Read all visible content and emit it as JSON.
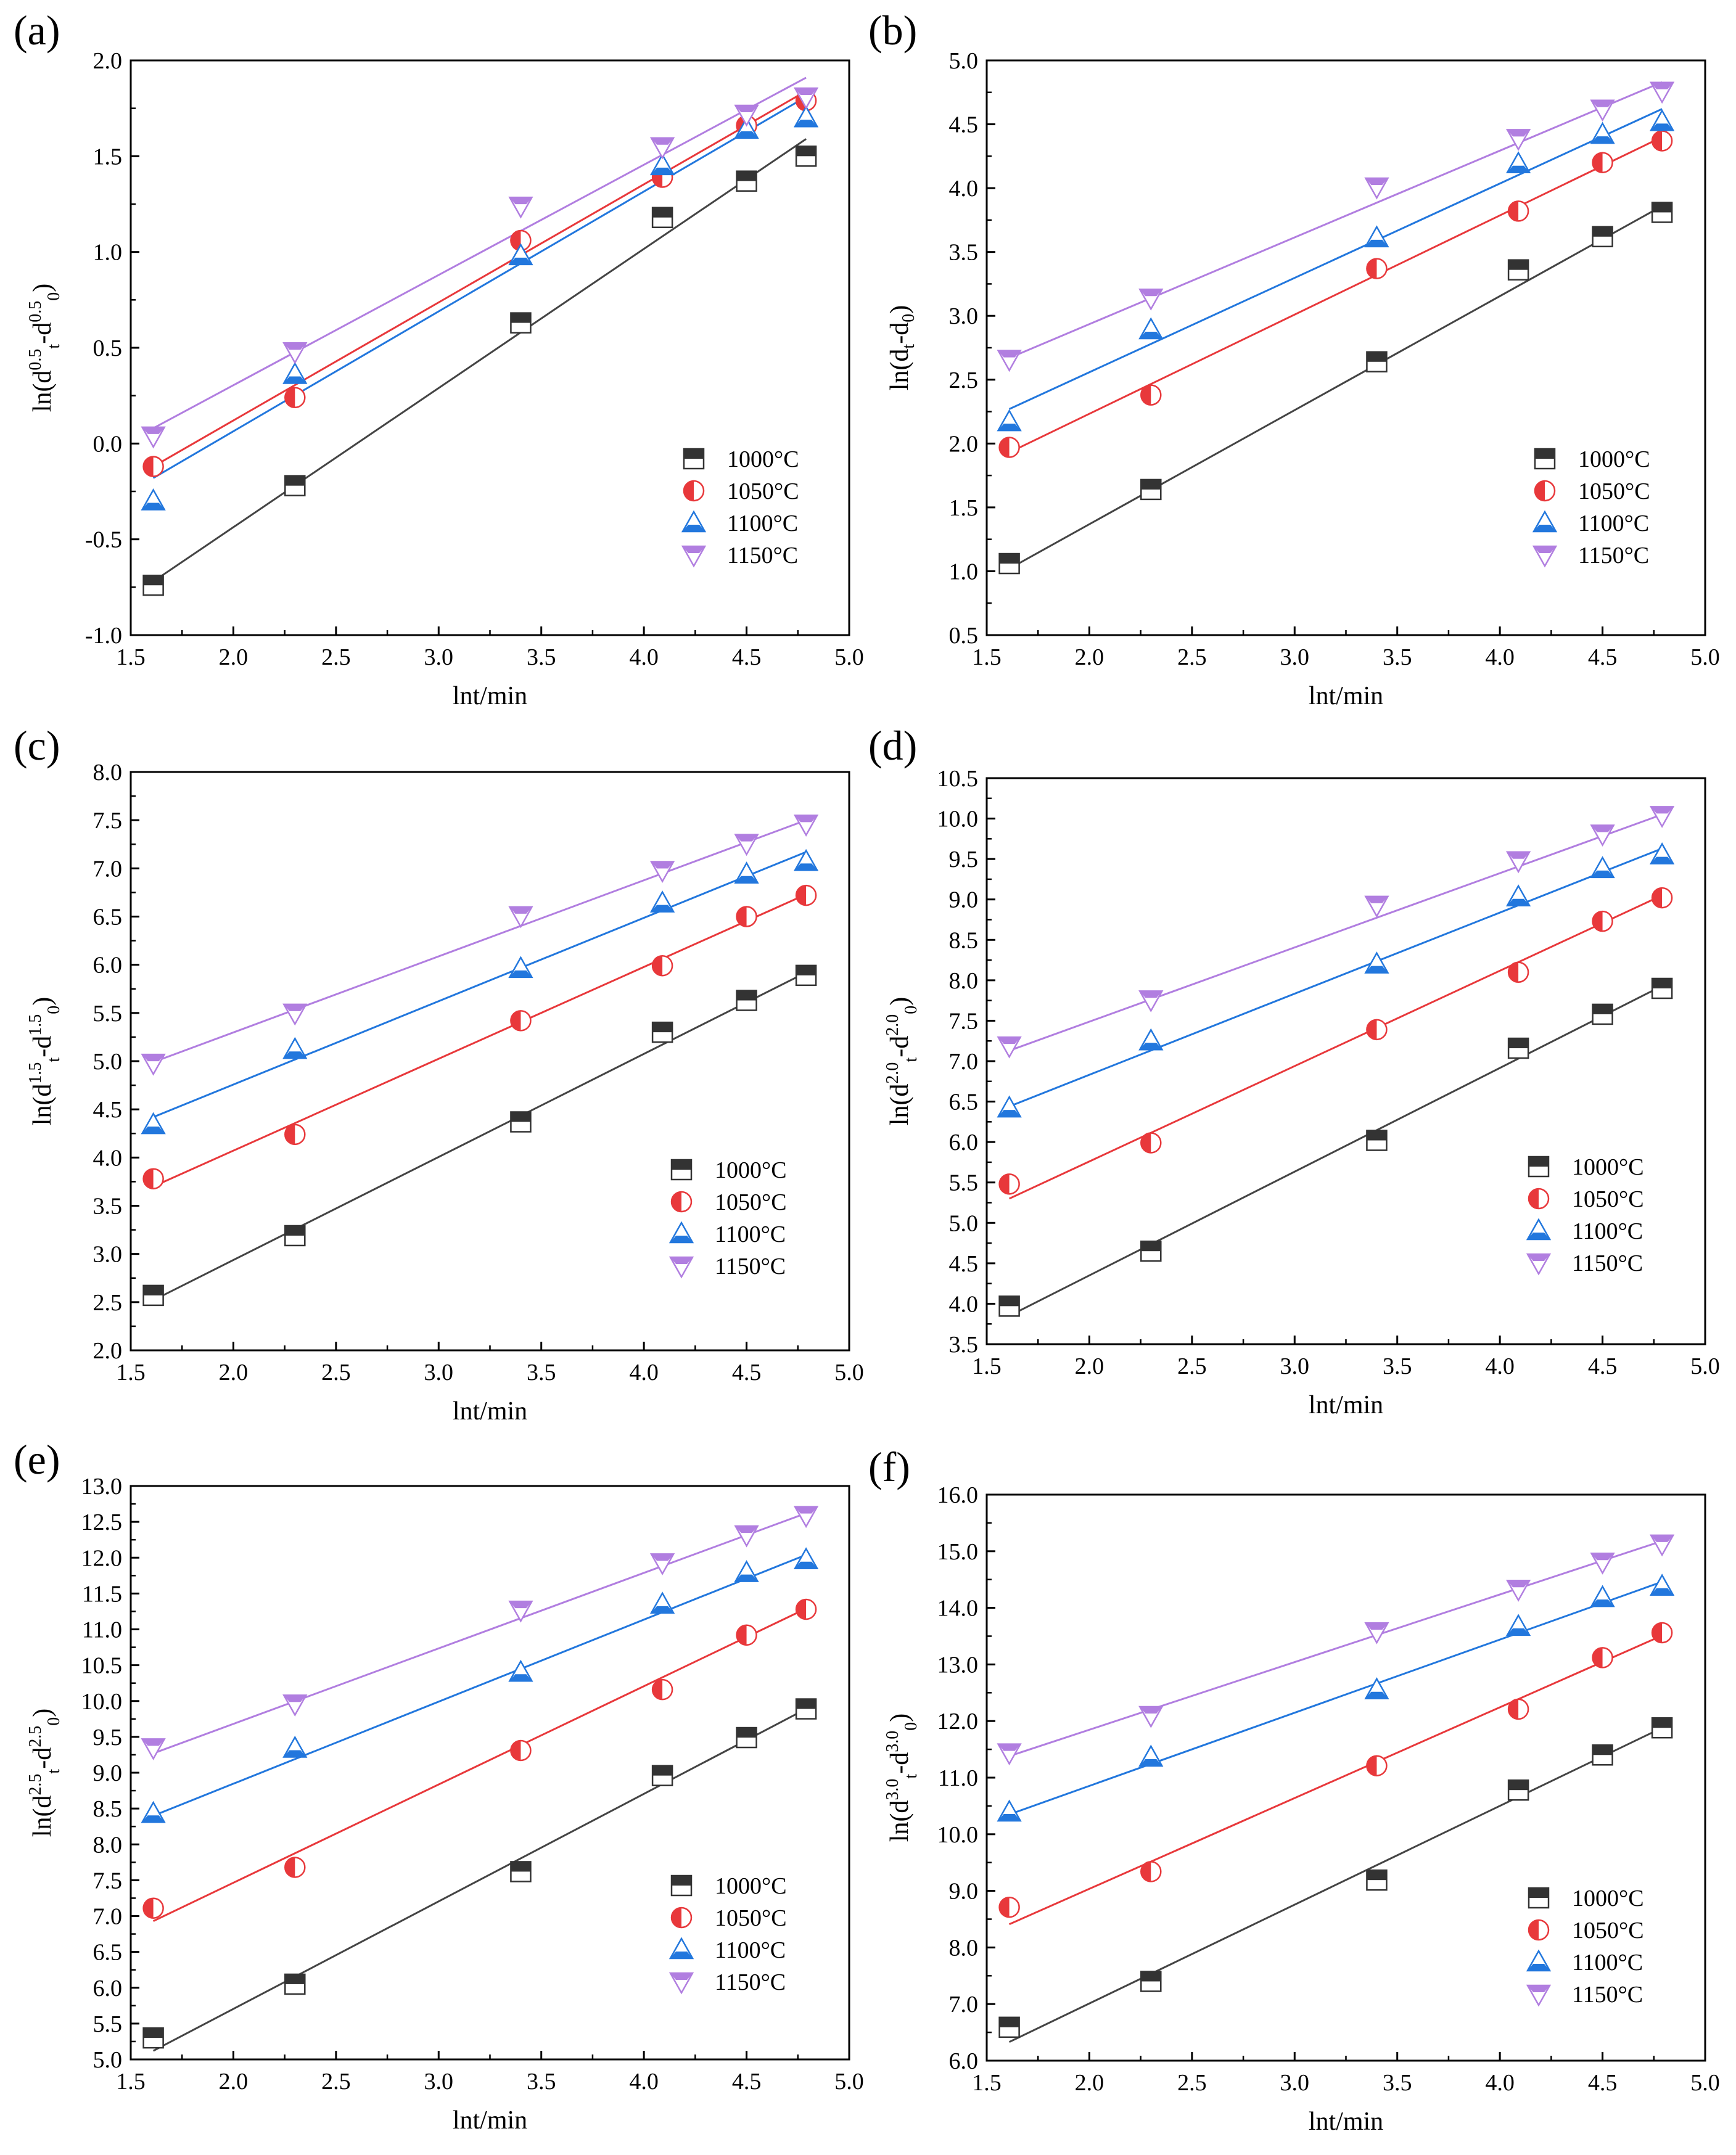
{
  "figure": {
    "series_names": [
      "1000°C",
      "1050°C",
      "1100°C",
      "1150°C"
    ],
    "series_colors": {
      "1000°C": "#444444",
      "1050°C": "#e8383b",
      "1100°C": "#2277dd",
      "1150°C": "#b17ee0"
    }
  },
  "chart_data": [
    {
      "id": "a",
      "label": "(a)",
      "type": "scatter",
      "title": "",
      "xlabel": "lnt/min",
      "ylabel": "ln(dt0.5-d00.5)",
      "ylabel_parts": {
        "sub": "t",
        "exp": "0.5"
      },
      "xlim": [
        1.5,
        5.0
      ],
      "ylim": [
        -1.0,
        2.0
      ],
      "xticks": [
        "1.5",
        "2.0",
        "2.5",
        "3.0",
        "3.5",
        "4.0",
        "4.5",
        "5.0"
      ],
      "yticks": [
        "-1.0",
        "-0.5",
        "0.0",
        "0.5",
        "1.0",
        "1.5",
        "2.0"
      ],
      "x": [
        1.61,
        2.3,
        3.4,
        4.09,
        4.5,
        4.79
      ],
      "series": [
        {
          "name": "1000°C",
          "values": [
            -0.74,
            -0.22,
            0.63,
            1.18,
            1.37,
            1.5
          ],
          "fit": [
            [
              1.61,
              -0.72
            ],
            [
              4.79,
              1.59
            ]
          ]
        },
        {
          "name": "1050°C",
          "values": [
            -0.12,
            0.24,
            1.06,
            1.39,
            1.66,
            1.79
          ],
          "fit": [
            [
              1.61,
              -0.12
            ],
            [
              4.79,
              1.84
            ]
          ]
        },
        {
          "name": "1100°C",
          "values": [
            -0.3,
            0.36,
            0.98,
            1.45,
            1.64,
            1.7
          ],
          "fit": [
            [
              1.61,
              -0.18
            ],
            [
              4.79,
              1.81
            ]
          ]
        },
        {
          "name": "1150°C",
          "values": [
            0.04,
            0.48,
            1.24,
            1.55,
            1.72,
            1.81
          ],
          "fit": [
            [
              1.61,
              0.08
            ],
            [
              4.79,
              1.91
            ]
          ]
        }
      ]
    },
    {
      "id": "b",
      "label": "(b)",
      "type": "scatter",
      "title": "",
      "xlabel": "lnt/min",
      "ylabel": "ln(dt-d0)",
      "ylabel_parts": {
        "sub": "t",
        "exp": ""
      },
      "xlim": [
        1.5,
        5.0
      ],
      "ylim": [
        0.5,
        5.0
      ],
      "xticks": [
        "1.5",
        "2.0",
        "2.5",
        "3.0",
        "3.5",
        "4.0",
        "4.5",
        "5.0"
      ],
      "yticks": [
        "0.5",
        "1.0",
        "1.5",
        "2.0",
        "2.5",
        "3.0",
        "3.5",
        "4.0",
        "4.5",
        "5.0"
      ],
      "x": [
        1.61,
        2.3,
        3.4,
        4.09,
        4.5,
        4.79
      ],
      "series": [
        {
          "name": "1000°C",
          "values": [
            1.06,
            1.64,
            2.64,
            3.36,
            3.62,
            3.81
          ],
          "fit": [
            [
              1.61,
              1.02
            ],
            [
              4.79,
              3.86
            ]
          ]
        },
        {
          "name": "1050°C",
          "values": [
            1.97,
            2.38,
            3.37,
            3.82,
            4.2,
            4.37
          ],
          "fit": [
            [
              1.61,
              1.93
            ],
            [
              4.79,
              4.4
            ]
          ]
        },
        {
          "name": "1100°C",
          "values": [
            2.17,
            2.89,
            3.61,
            4.19,
            4.42,
            4.52
          ],
          "fit": [
            [
              1.61,
              2.27
            ],
            [
              4.79,
              4.62
            ]
          ]
        },
        {
          "name": "1150°C",
          "values": [
            2.66,
            3.14,
            4.01,
            4.39,
            4.62,
            4.76
          ],
          "fit": [
            [
              1.61,
              2.67
            ],
            [
              4.79,
              4.83
            ]
          ]
        }
      ]
    },
    {
      "id": "c",
      "label": "(c)",
      "type": "scatter",
      "title": "",
      "xlabel": "lnt/min",
      "ylabel": "ln(dt1.5-d01.5)",
      "ylabel_parts": {
        "sub": "t",
        "exp": "1.5"
      },
      "xlim": [
        1.5,
        5.0
      ],
      "ylim": [
        2.0,
        8.0
      ],
      "xticks": [
        "1.5",
        "2.0",
        "2.5",
        "3.0",
        "3.5",
        "4.0",
        "4.5",
        "5.0"
      ],
      "yticks": [
        "2.0",
        "2.5",
        "3.0",
        "3.5",
        "4.0",
        "4.5",
        "5.0",
        "5.5",
        "6.0",
        "6.5",
        "7.0",
        "7.5",
        "8.0"
      ],
      "x": [
        1.61,
        2.3,
        3.4,
        4.09,
        4.5,
        4.79
      ],
      "series": [
        {
          "name": "1000°C",
          "values": [
            2.57,
            3.19,
            4.37,
            5.3,
            5.63,
            5.89
          ],
          "fit": [
            [
              1.61,
              2.52
            ],
            [
              4.79,
              5.92
            ]
          ]
        },
        {
          "name": "1050°C",
          "values": [
            3.78,
            4.24,
            5.42,
            5.99,
            6.5,
            6.72
          ],
          "fit": [
            [
              1.61,
              3.7
            ],
            [
              4.79,
              6.73
            ]
          ]
        },
        {
          "name": "1100°C",
          "values": [
            4.34,
            5.12,
            5.96,
            6.64,
            6.94,
            7.07
          ],
          "fit": [
            [
              1.61,
              4.42
            ],
            [
              4.79,
              7.17
            ]
          ]
        },
        {
          "name": "1150°C",
          "values": [
            4.98,
            5.5,
            6.51,
            6.98,
            7.26,
            7.46
          ],
          "fit": [
            [
              1.61,
              4.99
            ],
            [
              4.79,
              7.5
            ]
          ]
        }
      ]
    },
    {
      "id": "d",
      "label": "(d)",
      "type": "scatter",
      "title": "",
      "xlabel": "lnt/min",
      "ylabel": "ln(dt2.0-d02.0)",
      "ylabel_parts": {
        "sub": "t",
        "exp": "2.0"
      },
      "xlim": [
        1.5,
        5.0
      ],
      "ylim": [
        3.5,
        10.5
      ],
      "xticks": [
        "1.5",
        "2.0",
        "2.5",
        "3.0",
        "3.5",
        "4.0",
        "4.5",
        "5.0"
      ],
      "yticks": [
        "3.5",
        "4.0",
        "4.5",
        "5.0",
        "5.5",
        "6.0",
        "6.5",
        "7.0",
        "7.5",
        "8.0",
        "8.5",
        "9.0",
        "9.5",
        "10.0",
        "10.5"
      ],
      "x": [
        1.61,
        2.3,
        3.4,
        4.09,
        4.5,
        4.79
      ],
      "series": [
        {
          "name": "1000°C",
          "values": [
            3.97,
            4.65,
            6.02,
            7.16,
            7.58,
            7.9
          ],
          "fit": [
            [
              1.61,
              3.85
            ],
            [
              4.79,
              7.93
            ]
          ]
        },
        {
          "name": "1050°C",
          "values": [
            5.48,
            5.99,
            7.39,
            8.1,
            8.73,
            9.02
          ],
          "fit": [
            [
              1.61,
              5.3
            ],
            [
              4.79,
              9.05
            ]
          ]
        },
        {
          "name": "1100°C",
          "values": [
            6.42,
            7.25,
            8.2,
            9.03,
            9.38,
            9.55
          ],
          "fit": [
            [
              1.61,
              6.44
            ],
            [
              4.79,
              9.63
            ]
          ]
        },
        {
          "name": "1150°C",
          "values": [
            7.19,
            7.76,
            8.93,
            9.48,
            9.81,
            10.04
          ],
          "fit": [
            [
              1.61,
              7.13
            ],
            [
              4.79,
              10.05
            ]
          ]
        }
      ]
    },
    {
      "id": "e",
      "label": "(e)",
      "type": "scatter",
      "title": "",
      "xlabel": "lnt/min",
      "ylabel": "ln(dt2.5-d02.5)",
      "ylabel_parts": {
        "sub": "t",
        "exp": "2.5"
      },
      "xlim": [
        1.5,
        5.0
      ],
      "ylim": [
        5.0,
        13.0
      ],
      "xticks": [
        "1.5",
        "2.0",
        "2.5",
        "3.0",
        "3.5",
        "4.0",
        "4.5",
        "5.0"
      ],
      "yticks": [
        "5.0",
        "5.5",
        "6.0",
        "6.5",
        "7.0",
        "7.5",
        "8.0",
        "8.5",
        "9.0",
        "9.5",
        "10.0",
        "10.5",
        "11.0",
        "11.5",
        "12.0",
        "12.5",
        "13.0"
      ],
      "x": [
        1.61,
        2.3,
        3.4,
        4.09,
        4.5,
        4.79
      ],
      "series": [
        {
          "name": "1000°C",
          "values": [
            5.3,
            6.05,
            7.62,
            8.96,
            9.49,
            9.89
          ],
          "fit": [
            [
              1.61,
              5.12
            ],
            [
              4.79,
              9.89
            ]
          ]
        },
        {
          "name": "1050°C",
          "values": [
            7.11,
            7.68,
            9.31,
            10.16,
            10.92,
            11.28
          ],
          "fit": [
            [
              1.61,
              6.93
            ],
            [
              4.79,
              11.29
            ]
          ]
        },
        {
          "name": "1100°C",
          "values": [
            8.43,
            9.34,
            10.4,
            11.35,
            11.79,
            11.97
          ],
          "fit": [
            [
              1.61,
              8.4
            ],
            [
              4.79,
              12.04
            ]
          ]
        },
        {
          "name": "1150°C",
          "values": [
            9.35,
            9.96,
            11.27,
            11.93,
            12.32,
            12.59
          ],
          "fit": [
            [
              1.61,
              9.27
            ],
            [
              4.79,
              12.62
            ]
          ]
        }
      ]
    },
    {
      "id": "f",
      "label": "(f)",
      "type": "scatter",
      "title": "",
      "xlabel": "lnt/min",
      "ylabel": "ln(dt3.0-d03.0)",
      "ylabel_parts": {
        "sub": "t",
        "exp": "3.0"
      },
      "xlim": [
        1.5,
        5.0
      ],
      "ylim": [
        6.0,
        16.0
      ],
      "xticks": [
        "1.5",
        "2.0",
        "2.5",
        "3.0",
        "3.5",
        "4.0",
        "4.5",
        "5.0"
      ],
      "yticks": [
        "6.0",
        "7.0",
        "8.0",
        "9.0",
        "10.0",
        "11.0",
        "12.0",
        "13.0",
        "14.0",
        "15.0",
        "16.0"
      ],
      "x": [
        1.61,
        2.3,
        3.4,
        4.09,
        4.5,
        4.79
      ],
      "series": [
        {
          "name": "1000°C",
          "values": [
            6.59,
            7.4,
            9.19,
            10.78,
            11.4,
            11.88
          ],
          "fit": [
            [
              1.61,
              6.33
            ],
            [
              4.79,
              11.88
            ]
          ]
        },
        {
          "name": "1050°C",
          "values": [
            8.71,
            9.34,
            11.21,
            12.21,
            13.12,
            13.56
          ],
          "fit": [
            [
              1.61,
              8.41
            ],
            [
              4.79,
              13.51
            ]
          ]
        },
        {
          "name": "1100°C",
          "values": [
            10.39,
            11.36,
            12.55,
            13.67,
            14.18,
            14.38
          ],
          "fit": [
            [
              1.61,
              10.35
            ],
            [
              4.79,
              14.46
            ]
          ]
        },
        {
          "name": "1150°C",
          "values": [
            11.44,
            12.1,
            13.58,
            14.33,
            14.81,
            15.13
          ],
          "fit": [
            [
              1.61,
              11.38
            ],
            [
              4.79,
              15.18
            ]
          ]
        }
      ]
    }
  ]
}
